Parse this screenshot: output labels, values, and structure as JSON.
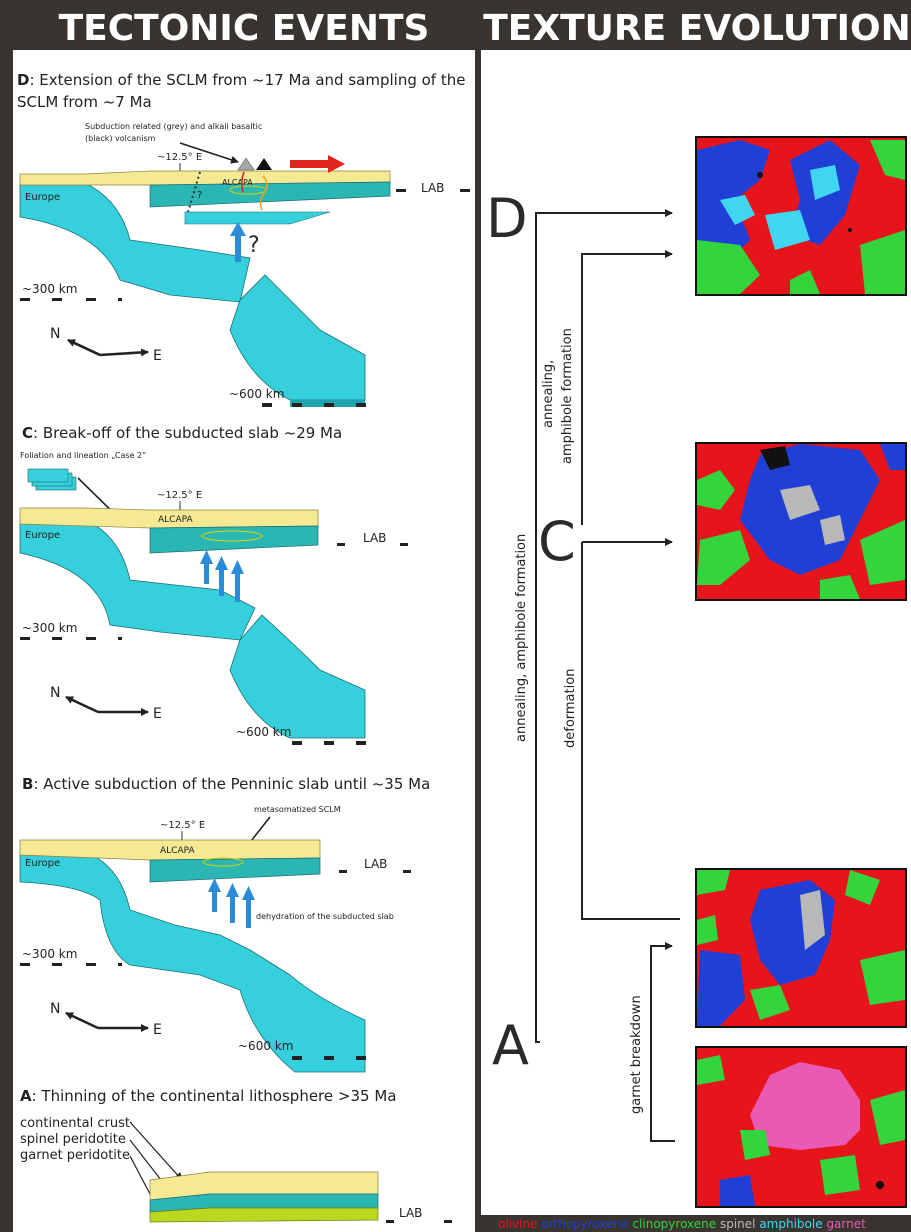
{
  "headers": {
    "left": "TECTONIC EVENTS",
    "right": "TEXTURE EVOLUTION"
  },
  "panels": {
    "d": {
      "letter": "D",
      "title_line1": ": Extension of the SCLM from ~17 Ma and sampling of the",
      "title_line2": "SCLM from ~7 Ma",
      "volcanism_line1": "Subduction related (grey) and alkali basaltic",
      "volcanism_line2": "(black) volcanism",
      "longitude": "~12.5° E",
      "alcapa": "ALCAPA",
      "europe": "Europe",
      "question_small": "?",
      "question_big": "?",
      "lab": "LAB",
      "depth300": "~300 km",
      "depth600": "~600 km",
      "north": "N",
      "east": "E"
    },
    "c": {
      "letter": "C",
      "title": ": Break-off of the subducted slab ~29 Ma",
      "foliation": "Foliation and lineation „Case 2“",
      "longitude": "~12.5° E",
      "alcapa": "ALCAPA",
      "europe": "Europe",
      "lab": "LAB",
      "depth300": "~300 km",
      "depth600": "~600 km",
      "north": "N",
      "east": "E"
    },
    "b": {
      "letter": "B",
      "title": ": Active subduction of the Penninic slab until ~35 Ma",
      "metasomatized": "metasomatized SCLM",
      "longitude": "~12.5° E",
      "alcapa": "ALCAPA",
      "europe": "Europe",
      "lab": "LAB",
      "dehydration": "dehydration of the subducted slab",
      "depth300": "~300 km",
      "depth600": "~600 km",
      "north": "N",
      "east": "E"
    },
    "a": {
      "letter": "A",
      "title": ": Thinning of the continental lithosphere >35 Ma",
      "continental_crust": "continental crust",
      "spinel_peridotite": "spinel peridotite",
      "garnet_peridotite": "garnet peridotite",
      "lab": "LAB"
    }
  },
  "texture": {
    "stage_d": "D",
    "stage_c": "C",
    "stage_a": "A",
    "label_outer": "annealing, amphibole formation",
    "label_upper_1": "annealing,",
    "label_upper_2": "amphibole formation",
    "label_deformation": "deformation",
    "label_garnet": "garnet breakdown"
  },
  "legend": [
    {
      "name": "olivine",
      "color": "#e8141b"
    },
    {
      "name": "orthopyroxene",
      "color": "#1f3fd6"
    },
    {
      "name": "clinopyroxene",
      "color": "#33d43c"
    },
    {
      "name": "spinel",
      "color": "#b8b8b8"
    },
    {
      "name": "amphibole",
      "color": "#41d6f0"
    },
    {
      "name": "garnet",
      "color": "#e85ab4"
    }
  ]
}
